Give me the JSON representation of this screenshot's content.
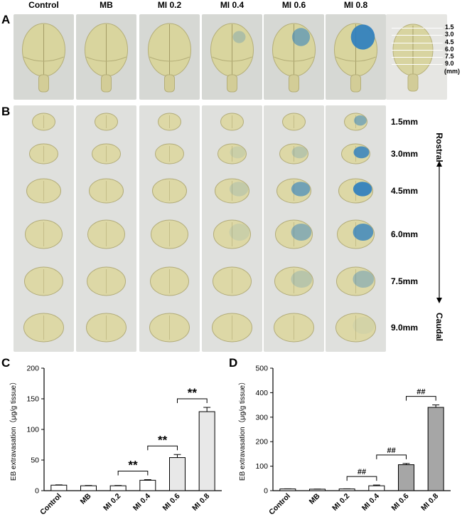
{
  "panel_a": {
    "letter": "A",
    "columns": [
      "Control",
      "MB",
      "MI 0.2",
      "MI 0.4",
      "MI 0.6",
      "MI 0.8"
    ],
    "mm_marks": [
      "1.5",
      "3.0",
      "4.5",
      "6.0",
      "7.5",
      "9.0"
    ],
    "mm_unit": "(mm)"
  },
  "panel_b": {
    "letter": "B",
    "slice_labels": [
      "1.5mm",
      "3.0mm",
      "4.5mm",
      "6.0mm",
      "7.5mm",
      "9.0mm"
    ],
    "rostral": "Rostral",
    "caudal": "Caudal"
  },
  "panel_c": {
    "letter": "C",
    "significance": [
      "**",
      "**",
      "**"
    ]
  },
  "panel_d": {
    "letter": "D",
    "significance": [
      "##",
      "##",
      "##"
    ]
  },
  "chart_data": [
    {
      "type": "bar",
      "categories": [
        "Control",
        "MB",
        "MI 0.2",
        "MI 0.4",
        "MI 0.6",
        "MI 0.8"
      ],
      "values": [
        9,
        8,
        8,
        17,
        54,
        129
      ],
      "errors": [
        0.5,
        0.5,
        0.5,
        1,
        5,
        7
      ],
      "ylabel": "EB extravasation（μg/g tissue）",
      "ylim": [
        0,
        200
      ],
      "yticks": [
        0,
        50,
        100,
        150,
        200
      ],
      "bar_color": "#e8e8e8"
    },
    {
      "type": "bar",
      "categories": [
        "Control",
        "MB",
        "MI 0.2",
        "MI 0.4",
        "MI 0.6",
        "MI 0.8"
      ],
      "values": [
        7,
        6,
        7,
        20,
        106,
        340
      ],
      "errors": [
        0.5,
        0.5,
        0.5,
        3,
        5,
        10
      ],
      "ylabel": "EB extravasation（μg/g tissue）",
      "ylim": [
        0,
        500
      ],
      "yticks": [
        0,
        100,
        200,
        300,
        400,
        500
      ],
      "bar_color": "#a6a6a6"
    }
  ]
}
